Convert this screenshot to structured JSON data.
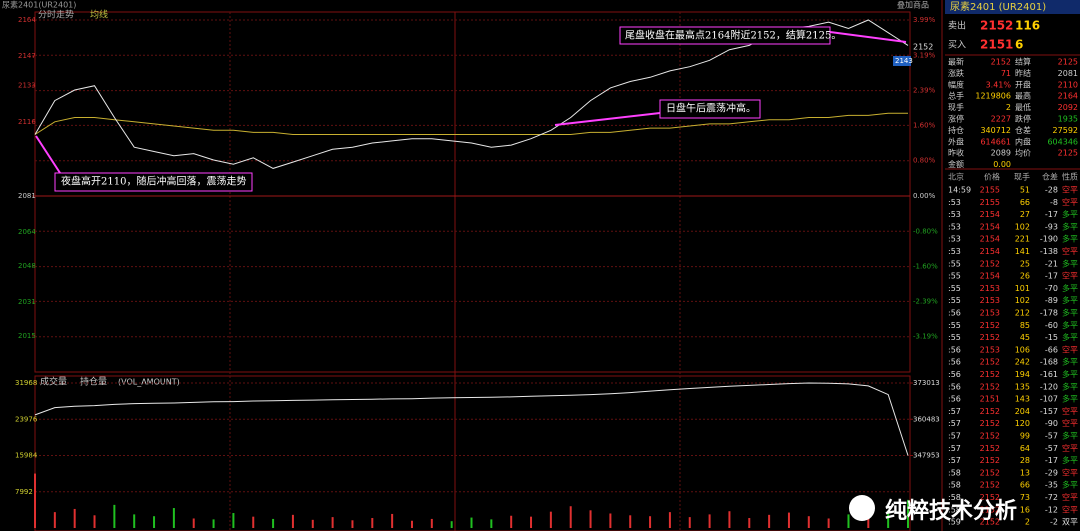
{
  "header": {
    "instrument": "尿素2401(UR2401)",
    "view": "分时走势",
    "avg_label": "均线",
    "overlay": "叠加商品"
  },
  "price_chart": {
    "ylim": [
      1998,
      2164
    ],
    "yticks": [
      2164,
      2147,
      2133,
      2116,
      2081,
      2064,
      2048,
      2031,
      2015
    ],
    "pct_lim": [
      -3.99,
      3.99
    ],
    "pct_ticks": [
      {
        "value": 3.99,
        "label": "3.99%"
      },
      {
        "value": 3.19,
        "label": "3.19%"
      },
      {
        "value": 2.39,
        "label": "2.39%"
      },
      {
        "value": 1.6,
        "label": "1.60%"
      },
      {
        "value": 0.8,
        "label": "0.80%"
      },
      {
        "value": 0,
        "label": "0.00%"
      },
      {
        "value": -0.8,
        "label": "-0.80%"
      },
      {
        "value": -1.6,
        "label": "-1.60%"
      },
      {
        "value": -2.39,
        "label": "-2.39%"
      },
      {
        "value": -3.19,
        "label": "-3.19%"
      }
    ],
    "price": [
      2110,
      2126,
      2131,
      2133,
      2118,
      2104,
      2102,
      2100,
      2101,
      2098,
      2096,
      2099,
      2094,
      2097,
      2100,
      2103,
      2104,
      2106,
      2107,
      2108,
      2108,
      2107,
      2106,
      2104,
      2105,
      2108,
      2112,
      2118,
      2126,
      2132,
      2135,
      2137,
      2140,
      2142,
      2145,
      2150,
      2152,
      2157,
      2160,
      2161,
      2163,
      2160,
      2164,
      2158,
      2152
    ],
    "average": [
      2110,
      2116,
      2118,
      2118,
      2117,
      2116,
      2115,
      2114,
      2113,
      2112,
      2112,
      2111,
      2111,
      2110,
      2110,
      2110,
      2110,
      2110,
      2110,
      2110,
      2110,
      2110,
      2110,
      2110,
      2110,
      2110,
      2110,
      2110,
      2111,
      2111,
      2112,
      2113,
      2113,
      2114,
      2115,
      2115,
      2116,
      2117,
      2117,
      2118,
      2118,
      2119,
      2119,
      2120,
      2120
    ],
    "last_label": 2152,
    "tag": 2143,
    "annotations": [
      "尾盘收盘在最高点2164附近2152，结算2125。",
      "日盘午后震荡冲高。",
      "夜盘高开2110，随后冲高回落，震荡走势"
    ]
  },
  "volume_chart": {
    "title": "成交量",
    "title2": "持仓量",
    "indicator": "(VOL_AMOUNT)",
    "ylim": [
      0,
      31968
    ],
    "yticks": [
      31968,
      23976,
      15984,
      7992
    ],
    "y2lim": [
      322893,
      373013
    ],
    "y2ticks": [
      373013,
      360483,
      347953
    ],
    "volume": [
      12000,
      3500,
      4200,
      2800,
      5100,
      3000,
      2600,
      4400,
      2100,
      1900,
      3300,
      2500,
      2000,
      2900,
      1800,
      2400,
      1700,
      2200,
      3100,
      1600,
      2000,
      1500,
      2300,
      1900,
      2700,
      2500,
      3600,
      4800,
      3900,
      3200,
      2800,
      2600,
      3500,
      2400,
      3000,
      3700,
      2200,
      2900,
      3400,
      2600,
      2100,
      3000,
      4600,
      3800,
      6200
    ],
    "open_interest": [
      362000,
      364500,
      365000,
      365200,
      365600,
      365900,
      366000,
      366100,
      366300,
      366500,
      366600,
      366800,
      366900,
      367000,
      367100,
      367200,
      367300,
      367400,
      367500,
      367600,
      367800,
      367900,
      368000,
      368100,
      368200,
      368400,
      368600,
      368800,
      369000,
      369300,
      369700,
      370200,
      370700,
      371100,
      371500,
      371900,
      372200,
      372500,
      372800,
      373000,
      372900,
      372700,
      372000,
      369000,
      347953
    ]
  },
  "quote": {
    "title": "尿素2401 (UR2401)",
    "ask": {
      "label": "卖出",
      "price": 2152,
      "size": 116
    },
    "bid": {
      "label": "买入",
      "price": 2151,
      "size": 6
    },
    "rows": [
      [
        "最新",
        2152,
        "结算",
        2125
      ],
      [
        "涨跌",
        71,
        "昨结",
        2081
      ],
      [
        "幅度",
        "3.41%",
        "开盘",
        2110
      ],
      [
        "总手",
        1219806,
        "最高",
        2164
      ],
      [
        "现手",
        2,
        "最低",
        2092
      ],
      [
        "涨停",
        2227,
        "跌停",
        1935
      ],
      [
        "持仓",
        340712,
        "仓差",
        27592
      ],
      [
        "外盘",
        614661,
        "内盘",
        604346
      ],
      [
        "昨收",
        2089,
        "均价",
        2125
      ],
      [
        "金额",
        "0.00"
      ]
    ]
  },
  "trades": {
    "header": [
      "北京",
      "价格",
      "现手",
      "仓差",
      "性质"
    ],
    "rows": [
      [
        "14:59",
        2155,
        51,
        -28,
        "空平"
      ],
      [
        ":53",
        2155,
        66,
        -8,
        "空平"
      ],
      [
        ":53",
        2154,
        27,
        -17,
        "多平"
      ],
      [
        ":53",
        2154,
        102,
        -93,
        "多平"
      ],
      [
        ":53",
        2154,
        221,
        -190,
        "多平"
      ],
      [
        ":53",
        2154,
        141,
        -138,
        "空平"
      ],
      [
        ":55",
        2152,
        25,
        -21,
        "多平"
      ],
      [
        ":55",
        2154,
        26,
        -17,
        "空平"
      ],
      [
        ":55",
        2153,
        101,
        -70,
        "多平"
      ],
      [
        ":55",
        2153,
        102,
        -89,
        "多平"
      ],
      [
        ":56",
        2153,
        212,
        -178,
        "多平"
      ],
      [
        ":55",
        2152,
        85,
        -60,
        "多平"
      ],
      [
        ":55",
        2152,
        45,
        -15,
        "多平"
      ],
      [
        ":56",
        2153,
        106,
        -66,
        "空平"
      ],
      [
        ":56",
        2152,
        242,
        -168,
        "多平"
      ],
      [
        ":56",
        2152,
        194,
        -161,
        "多平"
      ],
      [
        ":56",
        2152,
        135,
        -120,
        "多平"
      ],
      [
        ":56",
        2151,
        143,
        -107,
        "多平"
      ],
      [
        ":57",
        2152,
        204,
        -157,
        "空平"
      ],
      [
        ":57",
        2152,
        120,
        -90,
        "空平"
      ],
      [
        ":57",
        2152,
        99,
        -57,
        "多平"
      ],
      [
        ":57",
        2152,
        64,
        -57,
        "空平"
      ],
      [
        ":57",
        2152,
        28,
        -17,
        "多平"
      ],
      [
        ":58",
        2152,
        13,
        -29,
        "空平"
      ],
      [
        ":58",
        2152,
        66,
        -35,
        "多平"
      ],
      [
        ":58",
        2152,
        73,
        -72,
        "空平"
      ],
      [
        ":58",
        2152,
        16,
        -12,
        "空平"
      ],
      [
        ":59",
        2152,
        2,
        -2,
        "双平"
      ]
    ]
  },
  "watermark": "纯粹技术分析"
}
